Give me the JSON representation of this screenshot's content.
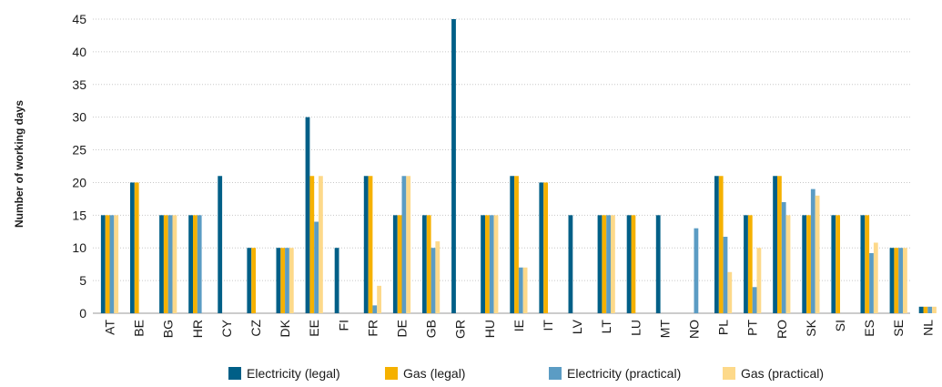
{
  "chart_data": {
    "type": "bar",
    "title": "",
    "xlabel": "",
    "ylabel": "Number of working days",
    "ylim": [
      0,
      45
    ],
    "yticks": [
      0,
      5,
      10,
      15,
      20,
      25,
      30,
      35,
      40,
      45
    ],
    "grid": true,
    "legend_position": "bottom",
    "categories": [
      "AT",
      "BE",
      "BG",
      "HR",
      "CY",
      "CZ",
      "DK",
      "EE",
      "FI",
      "FR",
      "DE",
      "GB",
      "GR",
      "HU",
      "IE",
      "IT",
      "LV",
      "LT",
      "LU",
      "MT",
      "NO",
      "PL",
      "PT",
      "RO",
      "SK",
      "SI",
      "ES",
      "SE",
      "NL"
    ],
    "series": [
      {
        "name": "Electricity (legal)",
        "color": "#005f87",
        "values": [
          15,
          20,
          15,
          15,
          21,
          10,
          10,
          30,
          10,
          21,
          15,
          15,
          45,
          15,
          21,
          20,
          15,
          15,
          15,
          15,
          0,
          21,
          15,
          21,
          15,
          15,
          15,
          10,
          1
        ]
      },
      {
        "name": "Gas (legal)",
        "color": "#f5b100",
        "values": [
          15,
          20,
          15,
          15,
          0,
          10,
          10,
          21,
          0,
          21,
          15,
          15,
          0,
          15,
          21,
          20,
          0,
          15,
          15,
          0,
          0,
          21,
          15,
          21,
          15,
          15,
          15,
          10,
          1
        ]
      },
      {
        "name": "Electricity (practical)",
        "color": "#5b9cc4",
        "values": [
          15,
          0,
          15,
          15,
          0,
          0,
          10,
          14,
          0,
          1.2,
          21,
          10,
          0,
          15,
          7,
          0,
          0,
          15,
          0,
          0,
          13,
          11.7,
          4,
          17,
          19,
          0,
          9.2,
          10,
          1
        ]
      },
      {
        "name": "Gas (practical)",
        "color": "#fdd98a",
        "values": [
          15,
          0,
          15,
          0,
          0,
          0,
          10,
          21,
          0,
          4.2,
          21,
          11,
          0,
          15,
          7,
          0,
          0,
          15,
          0,
          0,
          0,
          6.3,
          10,
          15,
          18,
          0,
          10.8,
          10,
          1
        ]
      }
    ]
  }
}
